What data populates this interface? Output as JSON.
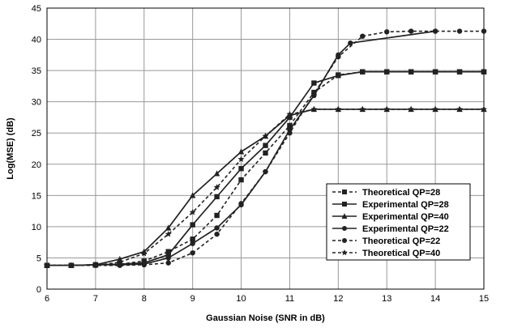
{
  "chart_data": {
    "type": "line",
    "xlabel": "Gaussian Noise (SNR in dB)",
    "ylabel": "Log(MSE) (dB)",
    "xlim": [
      6,
      15
    ],
    "ylim": [
      0,
      45
    ],
    "xticks": [
      6,
      7,
      8,
      9,
      10,
      11,
      12,
      13,
      14,
      15
    ],
    "yticks": [
      0,
      5,
      10,
      15,
      20,
      25,
      30,
      35,
      40,
      45
    ],
    "grid": true,
    "legend_position": "right",
    "series": [
      {
        "name": "Theoretical QP=28",
        "style": "dashed",
        "marker": "square",
        "x": [
          6,
          6.5,
          7,
          7.5,
          8,
          8.5,
          9,
          9.5,
          10,
          10.5,
          11,
          11.5,
          12,
          12.5,
          13,
          13.5,
          14,
          14.5,
          15
        ],
        "y": [
          3.8,
          3.8,
          3.9,
          4.0,
          4.5,
          6.0,
          8.0,
          11.8,
          17.5,
          21.8,
          26.2,
          31.5,
          34.3,
          34.8,
          34.8,
          34.8,
          34.8,
          34.8,
          34.8
        ]
      },
      {
        "name": "Experimental QP=28",
        "style": "solid",
        "marker": "square",
        "x": [
          6,
          6.5,
          7,
          7.5,
          8,
          8.5,
          9,
          9.5,
          10,
          10.5,
          11,
          11.5,
          12,
          12.5,
          13,
          13.5,
          14,
          14.5,
          15
        ],
        "y": [
          3.8,
          3.8,
          3.9,
          4.0,
          4.2,
          5.5,
          10.3,
          14.8,
          19.3,
          23.0,
          27.5,
          33.0,
          34.2,
          34.8,
          34.8,
          34.8,
          34.8,
          34.8,
          34.8
        ]
      },
      {
        "name": "Experimental QP=40",
        "style": "solid",
        "marker": "triangle",
        "x": [
          6,
          6.5,
          7,
          7.5,
          8,
          8.5,
          9,
          9.5,
          10,
          10.5,
          11,
          11.5,
          12,
          12.5,
          13,
          13.5,
          14,
          14.5,
          15
        ],
        "y": [
          3.8,
          3.8,
          3.9,
          4.8,
          6.0,
          9.8,
          15.0,
          18.5,
          22.0,
          24.5,
          27.8,
          28.8,
          28.8,
          28.8,
          28.8,
          28.8,
          28.8,
          28.8,
          28.8
        ]
      },
      {
        "name": "Experimental QP=22",
        "style": "solid",
        "marker": "circle",
        "x": [
          6,
          6.5,
          7,
          7.5,
          8,
          8.5,
          9,
          9.5,
          10,
          10.5,
          11,
          11.5,
          12,
          12.25,
          14
        ],
        "y": [
          3.8,
          3.8,
          3.9,
          3.9,
          4.0,
          5.0,
          7.3,
          9.8,
          13.5,
          18.8,
          25.5,
          31.0,
          37.5,
          39.4,
          41.3
        ]
      },
      {
        "name": "Theoretical QP=22",
        "style": "dashed",
        "marker": "circle",
        "x": [
          6,
          6.5,
          7,
          7.5,
          8,
          8.5,
          9,
          9.5,
          10,
          10.5,
          11,
          11.5,
          12,
          12.5,
          13,
          13.5,
          14,
          14.5,
          15
        ],
        "y": [
          3.8,
          3.8,
          3.8,
          3.8,
          3.9,
          4.2,
          5.8,
          8.8,
          13.7,
          18.8,
          25.0,
          31.3,
          37.2,
          40.5,
          41.2,
          41.3,
          41.3,
          41.3,
          41.3
        ]
      },
      {
        "name": "Theoretical QP=40",
        "style": "dashed",
        "marker": "star",
        "x": [
          6,
          6.5,
          7,
          7.5,
          8,
          8.5,
          9,
          9.5,
          10,
          10.5,
          11,
          11.5,
          12,
          12.5,
          13,
          13.5,
          14,
          14.5,
          15
        ],
        "y": [
          3.8,
          3.8,
          3.8,
          4.3,
          5.7,
          8.8,
          12.3,
          16.3,
          20.8,
          24.5,
          28.0,
          28.8,
          28.8,
          28.8,
          28.8,
          28.8,
          28.8,
          28.8,
          28.8
        ]
      }
    ]
  }
}
